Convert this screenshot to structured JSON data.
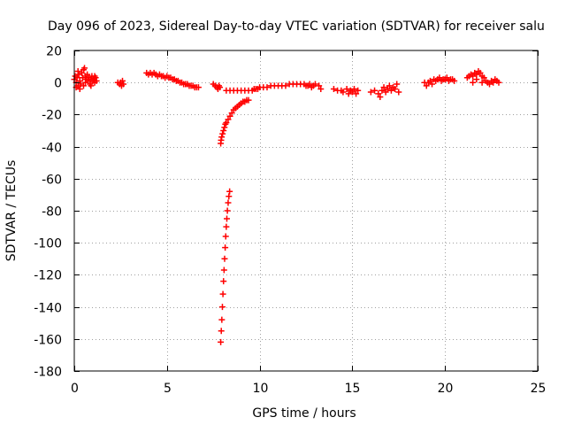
{
  "chart_data": {
    "type": "scatter",
    "title": "Day 096 of 2023, Sidereal Day-to-day VTEC variation (SDTVAR) for receiver salu",
    "xlabel": "GPS time / hours",
    "ylabel": "SDTVAR / TECUs",
    "xlim": [
      0,
      25
    ],
    "ylim": [
      -180,
      20
    ],
    "xticks": [
      0,
      5,
      10,
      15,
      20,
      25
    ],
    "yticks": [
      20,
      0,
      -20,
      -40,
      -60,
      -80,
      -100,
      -120,
      -140,
      -160,
      -180
    ],
    "grid": true,
    "marker": "plus",
    "color": "#ff0000",
    "series": [
      {
        "name": "SDTVAR",
        "points": [
          [
            0.0,
            2
          ],
          [
            0.05,
            4
          ],
          [
            0.1,
            0
          ],
          [
            0.15,
            3
          ],
          [
            0.2,
            -2
          ],
          [
            0.25,
            5
          ],
          [
            0.3,
            1
          ],
          [
            0.35,
            -1
          ],
          [
            0.4,
            6
          ],
          [
            0.45,
            3
          ],
          [
            0.5,
            8
          ],
          [
            0.55,
            9
          ],
          [
            0.6,
            4
          ],
          [
            0.65,
            2
          ],
          [
            0.7,
            5
          ],
          [
            0.75,
            1
          ],
          [
            0.8,
            3
          ],
          [
            0.85,
            -1
          ],
          [
            0.9,
            2
          ],
          [
            0.95,
            4
          ],
          [
            1.0,
            1
          ],
          [
            1.05,
            2
          ],
          [
            1.1,
            0
          ],
          [
            1.15,
            3
          ],
          [
            1.2,
            1
          ],
          [
            0.1,
            -3
          ],
          [
            0.3,
            -4
          ],
          [
            0.5,
            -2
          ],
          [
            0.2,
            7
          ],
          [
            0.6,
            0
          ],
          [
            0.9,
            -2
          ],
          [
            1.1,
            4
          ],
          [
            2.35,
            0
          ],
          [
            2.45,
            -1
          ],
          [
            2.5,
            0
          ],
          [
            2.55,
            -2
          ],
          [
            2.6,
            1
          ],
          [
            2.65,
            -1
          ],
          [
            3.9,
            6
          ],
          [
            4.0,
            5
          ],
          [
            4.1,
            6
          ],
          [
            4.2,
            5
          ],
          [
            4.3,
            6
          ],
          [
            4.4,
            5
          ],
          [
            4.5,
            4
          ],
          [
            4.6,
            5
          ],
          [
            4.7,
            4
          ],
          [
            4.8,
            4
          ],
          [
            4.9,
            3
          ],
          [
            5.0,
            4
          ],
          [
            5.1,
            3
          ],
          [
            5.2,
            3
          ],
          [
            5.3,
            2
          ],
          [
            5.4,
            2
          ],
          [
            5.5,
            1
          ],
          [
            5.6,
            1
          ],
          [
            5.7,
            0
          ],
          [
            5.8,
            0
          ],
          [
            5.9,
            -1
          ],
          [
            6.0,
            -1
          ],
          [
            6.1,
            -1
          ],
          [
            6.2,
            -2
          ],
          [
            6.3,
            -2
          ],
          [
            6.4,
            -2
          ],
          [
            6.5,
            -3
          ],
          [
            6.6,
            -3
          ],
          [
            6.7,
            -3
          ],
          [
            7.5,
            -1
          ],
          [
            7.6,
            -2
          ],
          [
            7.7,
            -3
          ],
          [
            7.75,
            -4
          ],
          [
            7.8,
            -2
          ],
          [
            7.85,
            -3
          ],
          [
            7.9,
            -38
          ],
          [
            7.92,
            -36
          ],
          [
            7.95,
            -34
          ],
          [
            8.0,
            -32
          ],
          [
            8.05,
            -30
          ],
          [
            8.1,
            -28
          ],
          [
            8.15,
            -26
          ],
          [
            8.2,
            -25
          ],
          [
            8.3,
            -23
          ],
          [
            8.4,
            -21
          ],
          [
            8.5,
            -19
          ],
          [
            8.6,
            -17
          ],
          [
            8.7,
            -16
          ],
          [
            8.8,
            -15
          ],
          [
            8.9,
            -14
          ],
          [
            9.0,
            -13
          ],
          [
            9.1,
            -12
          ],
          [
            9.2,
            -12
          ],
          [
            9.3,
            -11
          ],
          [
            9.4,
            -11
          ],
          [
            7.9,
            -162
          ],
          [
            7.93,
            -155
          ],
          [
            7.96,
            -148
          ],
          [
            7.99,
            -140
          ],
          [
            8.02,
            -132
          ],
          [
            8.05,
            -124
          ],
          [
            8.08,
            -117
          ],
          [
            8.11,
            -110
          ],
          [
            8.14,
            -103
          ],
          [
            8.17,
            -96
          ],
          [
            8.2,
            -90
          ],
          [
            8.23,
            -85
          ],
          [
            8.26,
            -80
          ],
          [
            8.3,
            -75
          ],
          [
            8.34,
            -71
          ],
          [
            8.38,
            -68
          ],
          [
            8.2,
            -5
          ],
          [
            8.4,
            -5
          ],
          [
            8.6,
            -5
          ],
          [
            8.8,
            -5
          ],
          [
            9.0,
            -5
          ],
          [
            9.2,
            -5
          ],
          [
            9.4,
            -5
          ],
          [
            9.6,
            -5
          ],
          [
            9.7,
            -4
          ],
          [
            9.8,
            -4
          ],
          [
            9.9,
            -4
          ],
          [
            10.0,
            -3
          ],
          [
            10.2,
            -3
          ],
          [
            10.4,
            -3
          ],
          [
            10.6,
            -2
          ],
          [
            10.8,
            -2
          ],
          [
            11.0,
            -2
          ],
          [
            11.2,
            -2
          ],
          [
            11.4,
            -2
          ],
          [
            11.6,
            -1
          ],
          [
            11.8,
            -1
          ],
          [
            12.0,
            -1
          ],
          [
            12.2,
            -1
          ],
          [
            12.4,
            -1
          ],
          [
            12.5,
            -2
          ],
          [
            12.6,
            -2
          ],
          [
            12.7,
            -1
          ],
          [
            12.8,
            -3
          ],
          [
            12.9,
            -2
          ],
          [
            13.0,
            -1
          ],
          [
            13.2,
            -2
          ],
          [
            13.3,
            -4
          ],
          [
            14.0,
            -4
          ],
          [
            14.2,
            -5
          ],
          [
            14.4,
            -5
          ],
          [
            14.5,
            -6
          ],
          [
            14.7,
            -4
          ],
          [
            14.8,
            -7
          ],
          [
            14.9,
            -5
          ],
          [
            15.0,
            -6
          ],
          [
            15.1,
            -4
          ],
          [
            15.2,
            -7
          ],
          [
            15.3,
            -5
          ],
          [
            16.0,
            -6
          ],
          [
            16.2,
            -5
          ],
          [
            16.4,
            -7
          ],
          [
            16.5,
            -9
          ],
          [
            16.6,
            -5
          ],
          [
            16.7,
            -3
          ],
          [
            16.8,
            -6
          ],
          [
            16.9,
            -4
          ],
          [
            17.0,
            -2
          ],
          [
            17.1,
            -5
          ],
          [
            17.2,
            -3
          ],
          [
            17.3,
            -4
          ],
          [
            17.4,
            -1
          ],
          [
            17.5,
            -6
          ],
          [
            18.9,
            0
          ],
          [
            19.0,
            -2
          ],
          [
            19.1,
            0
          ],
          [
            19.2,
            1
          ],
          [
            19.3,
            -1
          ],
          [
            19.4,
            2
          ],
          [
            19.5,
            1
          ],
          [
            19.6,
            2
          ],
          [
            19.7,
            3
          ],
          [
            19.8,
            1
          ],
          [
            19.9,
            2
          ],
          [
            20.0,
            2
          ],
          [
            20.1,
            3
          ],
          [
            20.2,
            1
          ],
          [
            20.3,
            2
          ],
          [
            20.4,
            2
          ],
          [
            20.5,
            1
          ],
          [
            21.2,
            3
          ],
          [
            21.3,
            4
          ],
          [
            21.4,
            5
          ],
          [
            21.5,
            4
          ],
          [
            21.6,
            6
          ],
          [
            21.7,
            5
          ],
          [
            21.8,
            7
          ],
          [
            21.9,
            6
          ],
          [
            22.0,
            4
          ],
          [
            22.1,
            3
          ],
          [
            22.2,
            1
          ],
          [
            22.3,
            0
          ],
          [
            22.4,
            -1
          ],
          [
            22.5,
            1
          ],
          [
            22.6,
            0
          ],
          [
            22.7,
            2
          ],
          [
            22.8,
            1
          ],
          [
            22.9,
            0
          ],
          [
            21.5,
            0
          ],
          [
            21.7,
            2
          ],
          [
            22.0,
            0
          ]
        ]
      }
    ]
  }
}
